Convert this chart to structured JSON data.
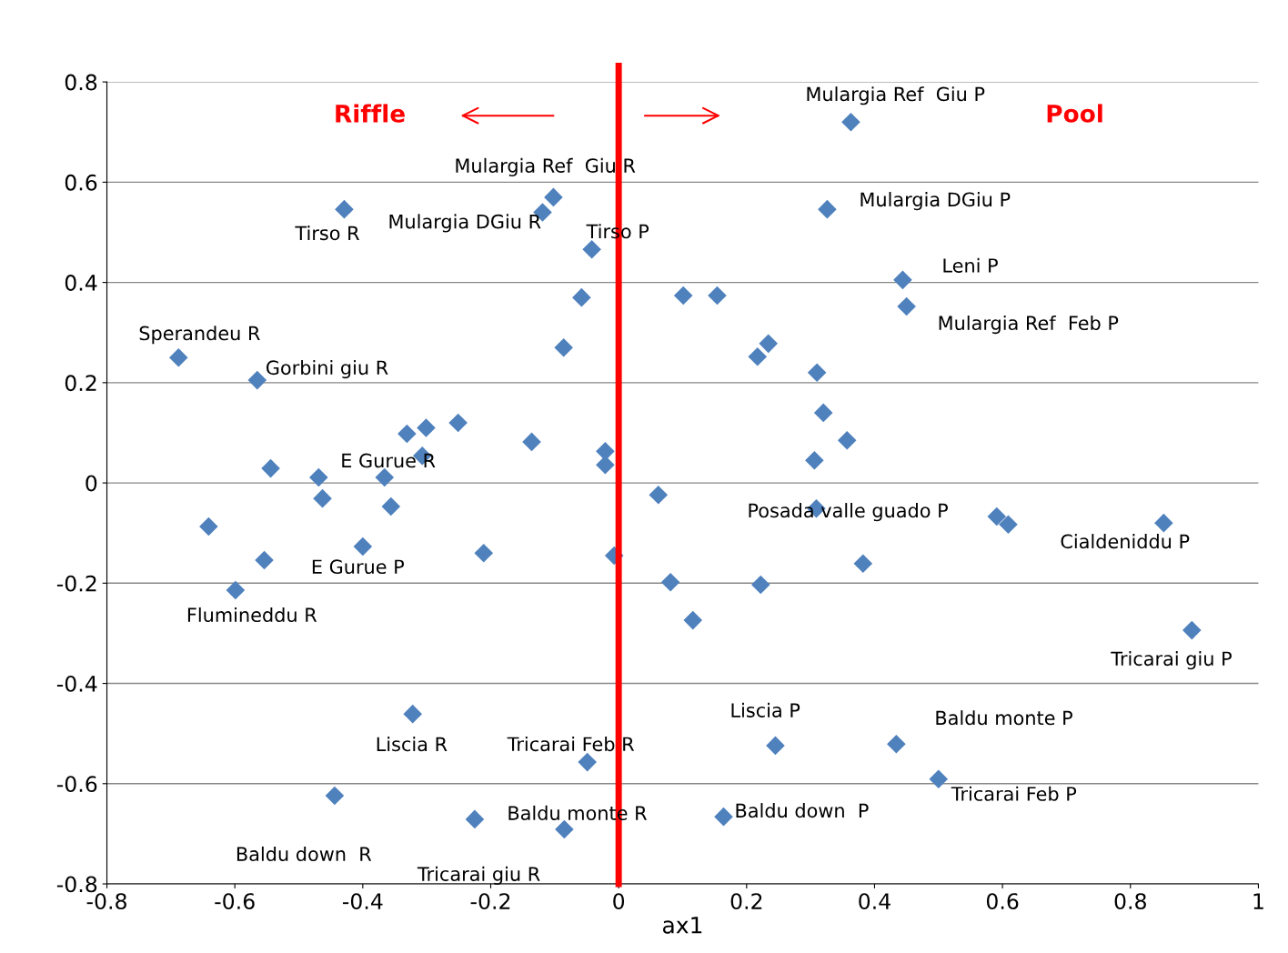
{
  "chart_data": {
    "type": "scatter",
    "xlabel": "ax1",
    "color": "#4f81bd",
    "marker": "diamond",
    "grid": "y",
    "legend": false,
    "xlim": [
      -0.8,
      1
    ],
    "ylim": [
      -0.8,
      0.8
    ],
    "xticks": [
      -0.8,
      -0.6,
      -0.4,
      -0.2,
      0,
      0.2,
      0.4,
      0.6,
      0.8,
      1
    ],
    "yticks": [
      -0.8,
      -0.6,
      -0.4,
      -0.2,
      0,
      0.2,
      0.4,
      0.6,
      0.8
    ],
    "x": [
      0.363,
      -0.102,
      -0.119,
      -0.429,
      0.326,
      -0.042,
      0.444,
      0.45,
      -0.058,
      0.101,
      0.154,
      0.234,
      0.217,
      -0.086,
      -0.688,
      -0.565,
      0.31,
      0.32,
      0.357,
      0.306,
      -0.251,
      -0.301,
      -0.331,
      -0.307,
      -0.136,
      -0.021,
      -0.021,
      -0.544,
      -0.469,
      -0.366,
      -0.463,
      -0.356,
      -0.641,
      0.062,
      0.309,
      0.591,
      0.609,
      0.852,
      -0.4,
      -0.554,
      -0.211,
      -0.007,
      0.382,
      -0.599,
      0.081,
      0.222,
      0.116,
      0.896,
      -0.322,
      -0.049,
      0.245,
      0.434,
      0.5,
      -0.444,
      -0.225,
      -0.085,
      0.164
    ],
    "values": [
      0.72,
      0.57,
      0.54,
      0.546,
      0.546,
      0.466,
      0.405,
      0.352,
      0.37,
      0.374,
      0.374,
      0.278,
      0.252,
      0.27,
      0.25,
      0.205,
      0.22,
      0.14,
      0.085,
      0.045,
      0.12,
      0.11,
      0.098,
      0.054,
      0.082,
      0.063,
      0.036,
      0.029,
      0.011,
      0.011,
      -0.031,
      -0.047,
      -0.087,
      -0.024,
      -0.051,
      -0.067,
      -0.083,
      -0.08,
      -0.127,
      -0.154,
      -0.14,
      -0.145,
      -0.161,
      -0.214,
      -0.198,
      -0.203,
      -0.274,
      -0.294,
      -0.461,
      -0.557,
      -0.524,
      -0.521,
      -0.591,
      -0.624,
      -0.671,
      -0.691,
      -0.666
    ],
    "ref_lines": [
      {
        "axis": "x",
        "value": 0,
        "color": "#ff0000"
      }
    ],
    "annotations": [
      "Riffle",
      "Pool",
      {
        "text": "Mulargia Ref  Giu P",
        "x": 0.363,
        "y": 0.72
      },
      {
        "text": "Mulargia Ref  Giu R",
        "x": -0.102,
        "y": 0.57
      },
      {
        "text": "Mulargia DGiu P",
        "x": 0.326,
        "y": 0.546
      },
      {
        "text": "Tirso R",
        "x": -0.429,
        "y": 0.546
      },
      {
        "text": "Mulargia DGiu R",
        "x": -0.119,
        "y": 0.54
      },
      {
        "text": "Tirso P",
        "x": -0.042,
        "y": 0.466
      },
      {
        "text": "Leni P",
        "x": 0.444,
        "y": 0.405
      },
      {
        "text": "Mulargia Ref  Feb P",
        "x": 0.45,
        "y": 0.352
      },
      {
        "text": "Sperandeu R",
        "x": -0.688,
        "y": 0.25
      },
      {
        "text": "Gorbini giu R",
        "x": -0.565,
        "y": 0.205
      },
      {
        "text": "E Gurue R",
        "x": -0.307,
        "y": 0.054
      },
      {
        "text": "Posada valle guado P",
        "x": 0.309,
        "y": -0.051
      },
      {
        "text": "Cialdeniddu P",
        "x": 0.852,
        "y": -0.08
      },
      {
        "text": "E Gurue P",
        "x": -0.4,
        "y": -0.127
      },
      {
        "text": "Flumineddu R",
        "x": -0.599,
        "y": -0.214
      },
      {
        "text": "Tricarai giu P",
        "x": 0.896,
        "y": -0.294
      },
      {
        "text": "Liscia P",
        "x": 0.245,
        "y": -0.524
      },
      {
        "text": "Baldu monte P",
        "x": 0.434,
        "y": -0.521
      },
      {
        "text": "Liscia R",
        "x": -0.322,
        "y": -0.461
      },
      {
        "text": "Tricarai Feb R",
        "x": -0.049,
        "y": -0.557
      },
      {
        "text": "Tricarai Feb P",
        "x": 0.5,
        "y": -0.591
      },
      {
        "text": "Baldu monte R",
        "x": -0.085,
        "y": -0.691
      },
      {
        "text": "Baldu down  P",
        "x": 0.164,
        "y": -0.666
      },
      {
        "text": "Baldu down  R",
        "x": -0.444,
        "y": -0.624
      },
      {
        "text": "Tricarai giu R",
        "x": -0.225,
        "y": -0.671
      }
    ]
  }
}
